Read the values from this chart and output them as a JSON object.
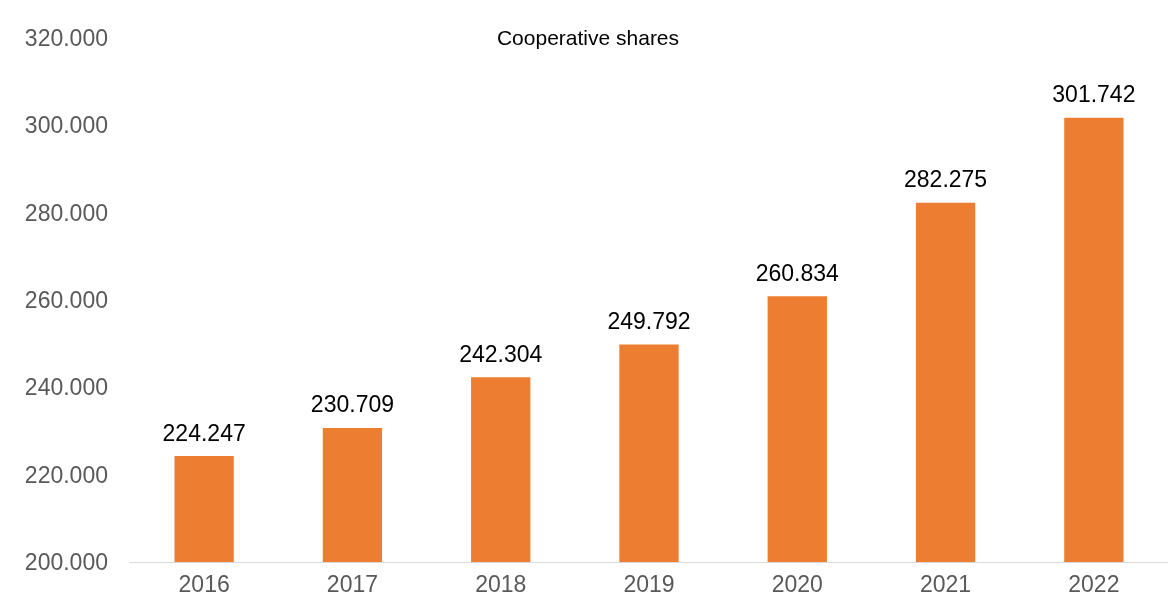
{
  "chart_data": {
    "type": "bar",
    "title": "Cooperative shares",
    "categories": [
      "2016",
      "2017",
      "2018",
      "2019",
      "2020",
      "2021",
      "2022"
    ],
    "values": [
      224247,
      230709,
      242304,
      249792,
      260834,
      282275,
      301742
    ],
    "value_labels": [
      "224.247",
      "230.709",
      "242.304",
      "249.792",
      "260.834",
      "282.275",
      "301.742"
    ],
    "color": "#ed7d31",
    "ylim": [
      200000,
      320000
    ],
    "yticks": [
      {
        "value": 200000,
        "label": "200.000"
      },
      {
        "value": 220000,
        "label": "220.000"
      },
      {
        "value": 240000,
        "label": "240.000"
      },
      {
        "value": 260000,
        "label": "260.000"
      },
      {
        "value": 280000,
        "label": "280.000"
      },
      {
        "value": 300000,
        "label": "300.000"
      },
      {
        "value": 320000,
        "label": "320.000"
      }
    ],
    "grid": false
  }
}
